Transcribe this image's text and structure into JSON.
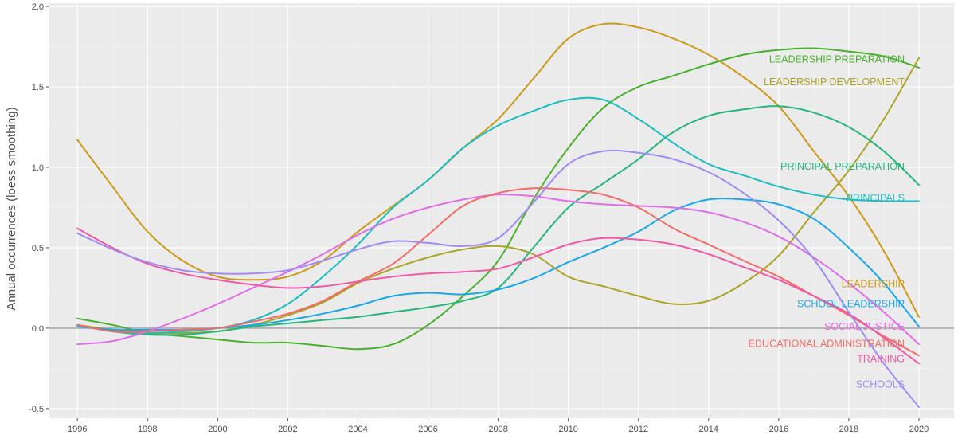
{
  "chart_data": {
    "type": "line",
    "title": "",
    "xlabel": "",
    "ylabel": "Annual occurrences (loess smoothing)",
    "xlim": [
      1995.2,
      2021.0
    ],
    "ylim": [
      -0.56,
      2.02
    ],
    "x_ticks": [
      1996,
      1998,
      2000,
      2002,
      2004,
      2006,
      2008,
      2010,
      2012,
      2014,
      2016,
      2018,
      2020
    ],
    "y_ticks": [
      -0.5,
      0.0,
      0.5,
      1.0,
      1.5,
      2.0
    ],
    "y_tick_labels": [
      "-0.5",
      "0.0",
      "0.5",
      "1.0",
      "1.5",
      "2.0"
    ],
    "background": "#ebebeb",
    "grid": true,
    "reference_line_y": 0,
    "legend": "none (direct labels at right end)",
    "series": [
      {
        "name": "LEADERSHIP",
        "color": "#cc9a16",
        "x": [
          1996,
          1997,
          1998,
          1999,
          2000,
          2001,
          2002,
          2003,
          2004,
          2005,
          2006,
          2007,
          2008,
          2009,
          2010,
          2011,
          2012,
          2013,
          2014,
          2015,
          2016,
          2017,
          2018,
          2019,
          2020
        ],
        "y": [
          1.17,
          0.88,
          0.6,
          0.42,
          0.32,
          0.3,
          0.32,
          0.42,
          0.6,
          0.76,
          0.92,
          1.12,
          1.3,
          1.55,
          1.8,
          1.89,
          1.87,
          1.8,
          1.7,
          1.56,
          1.38,
          1.1,
          0.82,
          0.48,
          0.07
        ]
      },
      {
        "name": "LEADERSHIP PREPARATION",
        "color": "#49b02c",
        "x": [
          1996,
          1997,
          1998,
          1999,
          2000,
          2001,
          2002,
          2003,
          2004,
          2005,
          2006,
          2007,
          2008,
          2009,
          2010,
          2011,
          2012,
          2013,
          2014,
          2015,
          2016,
          2017,
          2018,
          2019,
          2020
        ],
        "y": [
          0.06,
          0.02,
          -0.03,
          -0.05,
          -0.07,
          -0.09,
          -0.09,
          -0.11,
          -0.13,
          -0.1,
          0.02,
          0.2,
          0.42,
          0.8,
          1.12,
          1.37,
          1.5,
          1.57,
          1.64,
          1.7,
          1.73,
          1.74,
          1.72,
          1.69,
          1.62
        ]
      },
      {
        "name": "LEADERSHIP DEVELOPMENT",
        "color": "#aba427",
        "x": [
          1996,
          1997,
          1998,
          1999,
          2000,
          2001,
          2002,
          2003,
          2004,
          2005,
          2006,
          2007,
          2008,
          2009,
          2010,
          2011,
          2012,
          2013,
          2014,
          2015,
          2016,
          2017,
          2018,
          2019,
          2020
        ],
        "y": [
          0.02,
          -0.01,
          -0.03,
          -0.03,
          -0.02,
          0.02,
          0.08,
          0.16,
          0.28,
          0.37,
          0.44,
          0.49,
          0.51,
          0.46,
          0.32,
          0.26,
          0.2,
          0.15,
          0.17,
          0.28,
          0.45,
          0.72,
          0.98,
          1.3,
          1.68
        ]
      },
      {
        "name": "PRINCIPAL PREPARATION",
        "color": "#26b57d",
        "x": [
          1996,
          1997,
          1998,
          1999,
          2000,
          2001,
          2002,
          2003,
          2004,
          2005,
          2006,
          2007,
          2008,
          2009,
          2010,
          2011,
          2012,
          2013,
          2014,
          2015,
          2016,
          2017,
          2018,
          2019,
          2020
        ],
        "y": [
          0.02,
          -0.02,
          -0.04,
          -0.04,
          -0.02,
          0.01,
          0.03,
          0.05,
          0.07,
          0.1,
          0.13,
          0.17,
          0.25,
          0.5,
          0.75,
          0.9,
          1.05,
          1.22,
          1.32,
          1.36,
          1.38,
          1.34,
          1.25,
          1.1,
          0.89
        ]
      },
      {
        "name": "PRINCIPALS",
        "color": "#1cbdc2",
        "x": [
          1996,
          1997,
          1998,
          1999,
          2000,
          2001,
          2002,
          2003,
          2004,
          2005,
          2006,
          2007,
          2008,
          2009,
          2010,
          2011,
          2012,
          2013,
          2014,
          2015,
          2016,
          2017,
          2018,
          2019,
          2020
        ],
        "y": [
          0.02,
          -0.02,
          -0.03,
          -0.02,
          0.0,
          0.05,
          0.15,
          0.32,
          0.52,
          0.75,
          0.92,
          1.12,
          1.26,
          1.35,
          1.42,
          1.42,
          1.3,
          1.15,
          1.02,
          0.95,
          0.88,
          0.83,
          0.8,
          0.79,
          0.79
        ]
      },
      {
        "name": "SCHOOL LEADERSHIP",
        "color": "#1aa7e8",
        "x": [
          1996,
          1997,
          1998,
          1999,
          2000,
          2001,
          2002,
          2003,
          2004,
          2005,
          2006,
          2007,
          2008,
          2009,
          2010,
          2011,
          2012,
          2013,
          2014,
          2015,
          2016,
          2017,
          2018,
          2019,
          2020
        ],
        "y": [
          0.01,
          -0.01,
          -0.01,
          -0.01,
          0.0,
          0.02,
          0.05,
          0.09,
          0.14,
          0.2,
          0.22,
          0.21,
          0.24,
          0.31,
          0.41,
          0.5,
          0.6,
          0.73,
          0.8,
          0.8,
          0.77,
          0.68,
          0.5,
          0.28,
          0.01
        ]
      },
      {
        "name": "SOCIAL JUSTICE",
        "color": "#df6ee6",
        "x": [
          1996,
          1997,
          1998,
          1999,
          2000,
          2001,
          2002,
          2003,
          2004,
          2005,
          2006,
          2007,
          2008,
          2009,
          2010,
          2011,
          2012,
          2013,
          2014,
          2015,
          2016,
          2017,
          2018,
          2019,
          2020
        ],
        "y": [
          -0.1,
          -0.08,
          -0.02,
          0.06,
          0.15,
          0.25,
          0.35,
          0.46,
          0.58,
          0.68,
          0.75,
          0.8,
          0.83,
          0.82,
          0.79,
          0.77,
          0.76,
          0.75,
          0.72,
          0.66,
          0.57,
          0.44,
          0.28,
          0.1,
          -0.1
        ]
      },
      {
        "name": "EDUCATIONAL ADMINISTRATION",
        "color": "#f36c68",
        "x": [
          1996,
          1997,
          1998,
          1999,
          2000,
          2001,
          2002,
          2003,
          2004,
          2005,
          2006,
          2007,
          2008,
          2009,
          2010,
          2011,
          2012,
          2013,
          2014,
          2015,
          2016,
          2017,
          2018,
          2019,
          2020
        ],
        "y": [
          0.02,
          -0.02,
          -0.02,
          -0.01,
          0.0,
          0.04,
          0.09,
          0.17,
          0.29,
          0.4,
          0.58,
          0.76,
          0.84,
          0.87,
          0.86,
          0.83,
          0.75,
          0.62,
          0.52,
          0.42,
          0.32,
          0.2,
          0.08,
          -0.05,
          -0.17
        ]
      },
      {
        "name": "TRAINING",
        "color": "#ee5aa8",
        "x": [
          1996,
          1997,
          1998,
          1999,
          2000,
          2001,
          2002,
          2003,
          2004,
          2005,
          2006,
          2007,
          2008,
          2009,
          2010,
          2011,
          2012,
          2013,
          2014,
          2015,
          2016,
          2017,
          2018,
          2019,
          2020
        ],
        "y": [
          0.62,
          0.5,
          0.4,
          0.34,
          0.3,
          0.27,
          0.25,
          0.26,
          0.29,
          0.32,
          0.34,
          0.35,
          0.37,
          0.44,
          0.52,
          0.56,
          0.55,
          0.52,
          0.46,
          0.38,
          0.3,
          0.2,
          0.09,
          -0.06,
          -0.22
        ]
      },
      {
        "name": "SCHOOLS",
        "color": "#a08cf0",
        "x": [
          1996,
          1997,
          1998,
          1999,
          2000,
          2001,
          2002,
          2003,
          2004,
          2005,
          2006,
          2007,
          2008,
          2009,
          2010,
          2011,
          2012,
          2013,
          2014,
          2015,
          2016,
          2017,
          2018,
          2019,
          2020
        ],
        "y": [
          0.59,
          0.49,
          0.41,
          0.36,
          0.34,
          0.34,
          0.36,
          0.42,
          0.49,
          0.54,
          0.53,
          0.51,
          0.56,
          0.78,
          1.02,
          1.1,
          1.09,
          1.05,
          0.97,
          0.84,
          0.67,
          0.43,
          0.1,
          -0.22,
          -0.49
        ]
      }
    ]
  }
}
